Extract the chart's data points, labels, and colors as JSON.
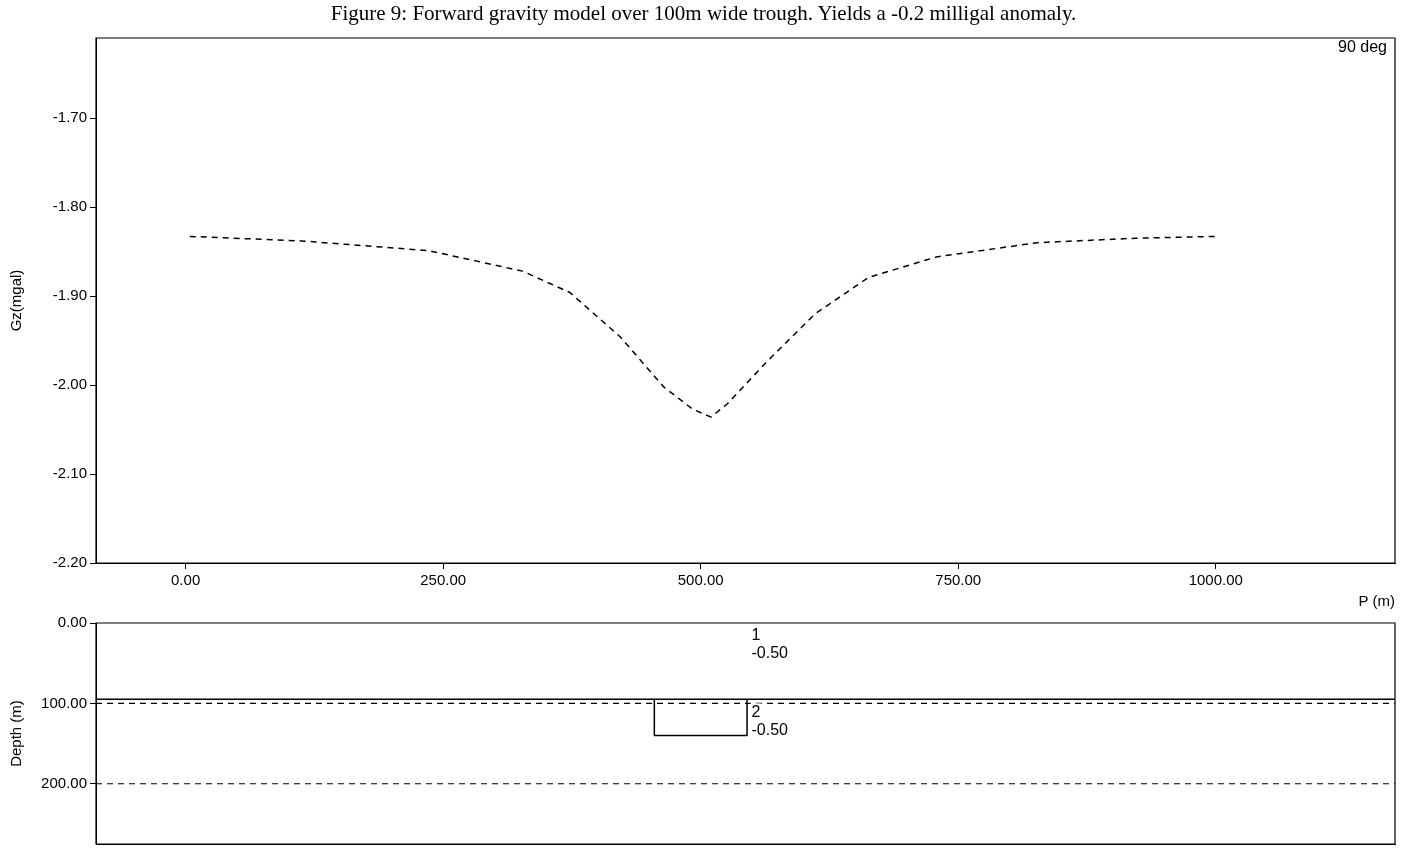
{
  "chart_data": [
    {
      "type": "line",
      "title": "Figure 9: Forward gravity model over 100m wide trough. Yields a -0.2 milligal anomaly.",
      "xlabel": "P (m)",
      "ylabel": "Gz(mgal)",
      "annotations": [
        "90 deg"
      ],
      "line_style": "dashed",
      "marker": "none",
      "grid": false,
      "xlim": [
        -87,
        1174
      ],
      "ylim": [
        -2.2,
        -1.61
      ],
      "xticks": [
        {
          "value": 0,
          "label": "0.00"
        },
        {
          "value": 250,
          "label": "250.00"
        },
        {
          "value": 500,
          "label": "500.00"
        },
        {
          "value": 750,
          "label": "750.00"
        },
        {
          "value": 1000,
          "label": "1000.00"
        }
      ],
      "yticks": [
        {
          "value": -1.7,
          "label": "-1.70"
        },
        {
          "value": -1.8,
          "label": "-1.80"
        },
        {
          "value": -1.9,
          "label": "-1.90"
        },
        {
          "value": -2.0,
          "label": "-2.00"
        },
        {
          "value": -2.1,
          "label": "-2.10"
        },
        {
          "value": -2.2,
          "label": "-2.20"
        }
      ],
      "series": [
        {
          "color": "#000000",
          "x": [
            4,
            112,
            236,
            327,
            373,
            422,
            464,
            492,
            510,
            526,
            564,
            611,
            663,
            729,
            827,
            922,
            1000
          ],
          "values": [
            -1.833,
            -1.838,
            -1.849,
            -1.872,
            -1.896,
            -1.946,
            -2.002,
            -2.027,
            -2.036,
            -2.021,
            -1.974,
            -1.92,
            -1.879,
            -1.856,
            -1.84,
            -1.835,
            -1.833
          ]
        }
      ]
    },
    {
      "type": "line",
      "ylabel": "Depth (m)",
      "tick_labels": "y",
      "grid": false,
      "marker": "none",
      "line_style": "solid",
      "xlim": [
        -87,
        1174
      ],
      "ylim": [
        275,
        0
      ],
      "yticks": [
        {
          "value": 0,
          "label": "0.00"
        },
        {
          "value": 100,
          "label": "100.00"
        },
        {
          "value": 200,
          "label": "200.00"
        }
      ],
      "series": [
        {
          "color": "#000000",
          "x": [
            -87,
            1174
          ],
          "values": [
            95,
            95
          ]
        },
        {
          "color": "#000000",
          "x": [
            455,
            455,
            545,
            545
          ],
          "values": [
            95,
            140,
            140,
            95
          ]
        }
      ],
      "ref_lines": [
        {
          "axis": "y",
          "value": 100,
          "line_style": "dashed"
        },
        {
          "axis": "y",
          "value": 200,
          "line_style": "dashed"
        }
      ],
      "annotations": [
        "1",
        "-0.50",
        "2",
        "-0.50"
      ]
    }
  ]
}
